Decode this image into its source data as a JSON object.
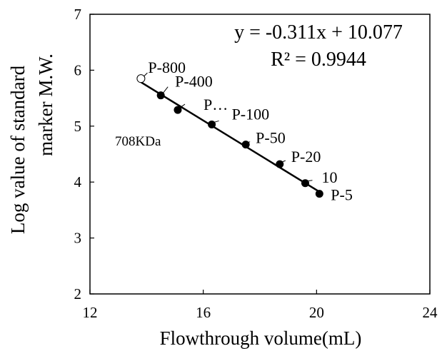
{
  "chart_data": {
    "type": "scatter",
    "xlabel": "Flowthrough volume(mL)",
    "ylabel_lines": [
      "Log value of standard",
      "marker M.W."
    ],
    "xlim": [
      12,
      24
    ],
    "ylim": [
      2,
      7
    ],
    "xticks": [
      "12",
      "16",
      "20",
      "24"
    ],
    "yticks": [
      "2",
      "3",
      "4",
      "5",
      "6",
      "7"
    ],
    "grid": false,
    "equation": "y = -0.311x + 10.077",
    "r_squared": "R² = 0.9944",
    "trendline": {
      "slope": -0.311,
      "intercept": 10.077,
      "x_range": [
        13.8,
        20.1
      ]
    },
    "standards": [
      {
        "label": "P-400",
        "x": 14.5,
        "y": 5.55
      },
      {
        "label": "P…",
        "x": 15.1,
        "y": 5.29
      },
      {
        "label": "P-100",
        "x": 16.3,
        "y": 5.03
      },
      {
        "label": "P-50",
        "x": 17.5,
        "y": 4.67
      },
      {
        "label": "P-20",
        "x": 18.7,
        "y": 4.32
      },
      {
        "label": "10",
        "x": 19.6,
        "y": 3.98
      },
      {
        "label": "P-5",
        "x": 20.1,
        "y": 3.79
      }
    ],
    "unknown": {
      "label": "P-800",
      "x": 13.8,
      "y": 5.85,
      "note": "708KDa"
    }
  }
}
